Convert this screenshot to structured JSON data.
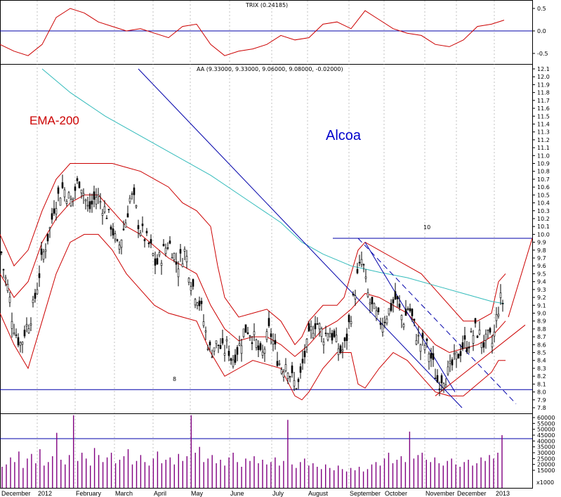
{
  "chart_data": {
    "type": "candlestick",
    "title": "Alcoa",
    "colors": {
      "price": "#000000",
      "bands": "#cc0000",
      "ema": "#33bbbb",
      "lines": "#0000aa",
      "trix": "#cc0000",
      "volume": "#800080"
    },
    "labels": {
      "ema": "EMA-200",
      "ohlc_header": "AA (9.33000, 9.33000, 9.06000, 9.08000, -0.02000)",
      "trix_header": "TRIX (0.24185)",
      "resistance_label": "10",
      "support_label": "8",
      "volume_unit": "x1000"
    },
    "x_ticks": [
      "December",
      "2012",
      "February",
      "March",
      "April",
      "May",
      "June",
      "July",
      "August",
      "September",
      "October",
      "November",
      "December",
      "2013"
    ],
    "price_axis": {
      "min": 7.8,
      "max": 12.1,
      "step": 0.1,
      "ticks": [
        "12.1",
        "12.0",
        "11.9",
        "11.8",
        "11.7",
        "11.6",
        "11.5",
        "11.4",
        "11.3",
        "11.2",
        "11.1",
        "11.0",
        "10.9",
        "10.8",
        "10.7",
        "10.6",
        "10.5",
        "10.4",
        "10.3",
        "10.2",
        "10.1",
        "10.0",
        "9.9",
        "9.8",
        "9.7",
        "9.6",
        "9.5",
        "9.4",
        "9.3",
        "9.2",
        "9.1",
        "9.0",
        "8.9",
        "8.8",
        "8.7",
        "8.6",
        "8.5",
        "8.4",
        "8.3",
        "8.2",
        "8.1",
        "8.0",
        "7.9",
        "7.8"
      ]
    },
    "trix_axis": {
      "min": -0.6,
      "max": 0.6,
      "ticks": [
        "0.5",
        "0.0",
        "-0.5"
      ]
    },
    "volume_axis": {
      "min": 0,
      "max": 65000,
      "ticks": [
        "60000",
        "55000",
        "50000",
        "45000",
        "40000",
        "35000",
        "30000",
        "25000",
        "20000",
        "15000"
      ]
    },
    "horizontal_levels": {
      "resistance": 9.95,
      "support": 8.03,
      "volume_line": 42000,
      "trix_zero": 0.0
    },
    "close_path": [
      [
        0,
        9.9
      ],
      [
        6,
        9.5
      ],
      [
        12,
        9.3
      ],
      [
        18,
        8.9
      ],
      [
        24,
        8.7
      ],
      [
        30,
        8.6
      ],
      [
        36,
        8.8
      ],
      [
        42,
        8.9
      ],
      [
        48,
        9.1
      ],
      [
        54,
        9.4
      ],
      [
        60,
        9.7
      ],
      [
        66,
        9.9
      ],
      [
        72,
        10.1
      ],
      [
        78,
        10.4
      ],
      [
        84,
        10.5
      ],
      [
        90,
        10.6
      ],
      [
        96,
        10.5
      ],
      [
        102,
        10.4
      ],
      [
        108,
        10.6
      ],
      [
        114,
        10.7
      ],
      [
        120,
        10.5
      ],
      [
        126,
        10.3
      ],
      [
        132,
        10.4
      ],
      [
        138,
        10.5
      ],
      [
        144,
        10.4
      ],
      [
        150,
        10.3
      ],
      [
        156,
        10.2
      ],
      [
        162,
        10.0
      ],
      [
        168,
        9.8
      ],
      [
        174,
        10.0
      ],
      [
        180,
        10.2
      ],
      [
        186,
        10.5
      ],
      [
        192,
        10.4
      ],
      [
        198,
        10.1
      ],
      [
        204,
        10.0
      ],
      [
        210,
        9.9
      ],
      [
        216,
        9.8
      ],
      [
        222,
        9.6
      ],
      [
        228,
        9.7
      ],
      [
        234,
        9.8
      ],
      [
        240,
        9.9
      ],
      [
        246,
        9.8
      ],
      [
        252,
        9.6
      ],
      [
        258,
        9.7
      ],
      [
        264,
        9.8
      ],
      [
        270,
        9.5
      ],
      [
        276,
        9.3
      ],
      [
        282,
        9.2
      ],
      [
        288,
        9.0
      ],
      [
        294,
        8.7
      ],
      [
        300,
        8.5
      ],
      [
        306,
        8.6
      ],
      [
        312,
        8.6
      ],
      [
        318,
        8.5
      ],
      [
        324,
        8.6
      ],
      [
        330,
        8.4
      ],
      [
        336,
        8.5
      ],
      [
        342,
        8.6
      ],
      [
        348,
        8.8
      ],
      [
        354,
        8.8
      ],
      [
        360,
        8.7
      ],
      [
        366,
        8.6
      ],
      [
        372,
        8.4
      ],
      [
        378,
        8.6
      ],
      [
        384,
        8.8
      ],
      [
        390,
        8.6
      ],
      [
        396,
        8.4
      ],
      [
        402,
        8.3
      ],
      [
        408,
        8.4
      ],
      [
        414,
        8.2
      ],
      [
        420,
        8.1
      ],
      [
        426,
        8.1
      ],
      [
        432,
        8.4
      ],
      [
        438,
        8.6
      ],
      [
        444,
        8.8
      ],
      [
        450,
        8.9
      ],
      [
        456,
        8.8
      ],
      [
        462,
        8.7
      ],
      [
        468,
        8.8
      ],
      [
        474,
        8.7
      ],
      [
        480,
        8.6
      ],
      [
        486,
        8.5
      ],
      [
        492,
        8.6
      ],
      [
        498,
        8.9
      ],
      [
        504,
        9.2
      ],
      [
        510,
        9.5
      ],
      [
        516,
        9.7
      ],
      [
        522,
        9.3
      ],
      [
        528,
        9.1
      ],
      [
        534,
        9.0
      ],
      [
        540,
        8.9
      ],
      [
        546,
        8.9
      ],
      [
        552,
        9.0
      ],
      [
        558,
        9.1
      ],
      [
        564,
        9.2
      ],
      [
        570,
        9.0
      ],
      [
        576,
        8.9
      ],
      [
        582,
        9.1
      ],
      [
        588,
        8.9
      ],
      [
        594,
        8.7
      ],
      [
        600,
        8.6
      ],
      [
        606,
        8.6
      ],
      [
        612,
        8.5
      ],
      [
        618,
        8.3
      ],
      [
        624,
        8.1
      ],
      [
        630,
        8.2
      ],
      [
        636,
        8.2
      ],
      [
        642,
        8.3
      ],
      [
        648,
        8.4
      ],
      [
        654,
        8.5
      ],
      [
        660,
        8.6
      ],
      [
        666,
        8.6
      ],
      [
        672,
        8.7
      ],
      [
        678,
        8.8
      ],
      [
        684,
        8.7
      ],
      [
        690,
        8.6
      ],
      [
        696,
        8.7
      ],
      [
        702,
        8.6
      ],
      [
        708,
        9.0
      ],
      [
        714,
        9.2
      ],
      [
        718,
        9.08
      ]
    ],
    "upper_band": [
      [
        0,
        10.0
      ],
      [
        20,
        9.6
      ],
      [
        40,
        9.8
      ],
      [
        60,
        10.3
      ],
      [
        80,
        10.7
      ],
      [
        100,
        10.9
      ],
      [
        120,
        10.9
      ],
      [
        140,
        10.9
      ],
      [
        160,
        10.9
      ],
      [
        180,
        10.85
      ],
      [
        200,
        10.8
      ],
      [
        220,
        10.7
      ],
      [
        240,
        10.6
      ],
      [
        260,
        10.4
      ],
      [
        280,
        10.3
      ],
      [
        300,
        10.1
      ],
      [
        310,
        9.6
      ],
      [
        320,
        9.2
      ],
      [
        340,
        8.95
      ],
      [
        360,
        9.0
      ],
      [
        380,
        9.05
      ],
      [
        400,
        8.9
      ],
      [
        420,
        8.6
      ],
      [
        430,
        8.7
      ],
      [
        440,
        8.9
      ],
      [
        460,
        9.1
      ],
      [
        480,
        9.1
      ],
      [
        490,
        9.2
      ],
      [
        500,
        9.5
      ],
      [
        510,
        9.8
      ],
      [
        520,
        9.9
      ],
      [
        540,
        9.8
      ],
      [
        560,
        9.7
      ],
      [
        580,
        9.6
      ],
      [
        600,
        9.5
      ],
      [
        620,
        9.3
      ],
      [
        640,
        9.1
      ],
      [
        660,
        8.9
      ],
      [
        680,
        8.9
      ],
      [
        700,
        9.0
      ],
      [
        710,
        9.4
      ],
      [
        720,
        9.5
      ]
    ],
    "middle_band": [
      [
        0,
        9.5
      ],
      [
        20,
        9.2
      ],
      [
        40,
        9.4
      ],
      [
        60,
        9.9
      ],
      [
        80,
        10.2
      ],
      [
        100,
        10.4
      ],
      [
        120,
        10.5
      ],
      [
        140,
        10.5
      ],
      [
        160,
        10.3
      ],
      [
        180,
        10.1
      ],
      [
        200,
        10.0
      ],
      [
        220,
        9.85
      ],
      [
        240,
        9.7
      ],
      [
        260,
        9.6
      ],
      [
        280,
        9.5
      ],
      [
        300,
        9.1
      ],
      [
        320,
        8.8
      ],
      [
        340,
        8.65
      ],
      [
        360,
        8.7
      ],
      [
        380,
        8.7
      ],
      [
        400,
        8.6
      ],
      [
        420,
        8.45
      ],
      [
        440,
        8.6
      ],
      [
        460,
        8.8
      ],
      [
        480,
        8.9
      ],
      [
        500,
        9.05
      ],
      [
        520,
        9.25
      ],
      [
        540,
        9.2
      ],
      [
        560,
        9.1
      ],
      [
        580,
        9.0
      ],
      [
        600,
        8.8
      ],
      [
        620,
        8.6
      ],
      [
        640,
        8.5
      ],
      [
        660,
        8.55
      ],
      [
        680,
        8.6
      ],
      [
        700,
        8.7
      ],
      [
        710,
        8.8
      ],
      [
        720,
        8.9
      ]
    ],
    "lower_band": [
      [
        0,
        9.0
      ],
      [
        20,
        8.6
      ],
      [
        40,
        8.3
      ],
      [
        60,
        8.9
      ],
      [
        80,
        9.5
      ],
      [
        100,
        9.9
      ],
      [
        120,
        10.0
      ],
      [
        140,
        10.0
      ],
      [
        160,
        9.8
      ],
      [
        180,
        9.5
      ],
      [
        200,
        9.3
      ],
      [
        220,
        9.1
      ],
      [
        240,
        9.0
      ],
      [
        260,
        8.95
      ],
      [
        280,
        8.9
      ],
      [
        300,
        8.5
      ],
      [
        320,
        8.2
      ],
      [
        340,
        8.3
      ],
      [
        360,
        8.4
      ],
      [
        380,
        8.35
      ],
      [
        400,
        8.3
      ],
      [
        420,
        7.95
      ],
      [
        430,
        7.9
      ],
      [
        440,
        8.0
      ],
      [
        460,
        8.3
      ],
      [
        480,
        8.5
      ],
      [
        500,
        8.5
      ],
      [
        510,
        8.1
      ],
      [
        520,
        8.05
      ],
      [
        540,
        8.3
      ],
      [
        560,
        8.5
      ],
      [
        580,
        8.4
      ],
      [
        600,
        8.2
      ],
      [
        620,
        8.0
      ],
      [
        640,
        7.95
      ],
      [
        660,
        7.95
      ],
      [
        680,
        8.1
      ],
      [
        700,
        8.25
      ],
      [
        710,
        8.4
      ],
      [
        720,
        8.4
      ]
    ],
    "ema_200": [
      [
        60,
        12.1
      ],
      [
        100,
        11.8
      ],
      [
        150,
        11.5
      ],
      [
        200,
        11.25
      ],
      [
        250,
        11.0
      ],
      [
        300,
        10.75
      ],
      [
        350,
        10.45
      ],
      [
        400,
        10.15
      ],
      [
        430,
        9.9
      ],
      [
        460,
        9.75
      ],
      [
        500,
        9.6
      ],
      [
        540,
        9.52
      ],
      [
        580,
        9.45
      ],
      [
        620,
        9.35
      ],
      [
        660,
        9.25
      ],
      [
        700,
        9.15
      ],
      [
        718,
        9.12
      ]
    ],
    "trendlines": [
      {
        "name": "long-downtrend",
        "points": [
          [
            197,
            12.1
          ],
          [
            658,
            7.8
          ]
        ]
      },
      {
        "name": "channel-upper",
        "points": [
          [
            510,
            9.95
          ],
          [
            735,
            7.85
          ]
        ]
      },
      {
        "name": "channel-lower",
        "points": [
          [
            520,
            9.9
          ],
          [
            648,
            8.0
          ]
        ]
      },
      {
        "name": "uptrend-support",
        "points": [
          [
            620,
            7.95
          ],
          [
            748,
            8.85
          ]
        ]
      },
      {
        "name": "projection",
        "points": [
          [
            724,
            8.95
          ],
          [
            758,
            9.95
          ]
        ]
      }
    ],
    "trix": [
      [
        0,
        -0.3
      ],
      [
        20,
        -0.45
      ],
      [
        40,
        -0.55
      ],
      [
        60,
        -0.3
      ],
      [
        80,
        0.3
      ],
      [
        100,
        0.5
      ],
      [
        120,
        0.4
      ],
      [
        140,
        0.2
      ],
      [
        160,
        0.1
      ],
      [
        180,
        0.0
      ],
      [
        200,
        0.05
      ],
      [
        220,
        -0.05
      ],
      [
        240,
        -0.15
      ],
      [
        260,
        0.1
      ],
      [
        280,
        0.15
      ],
      [
        300,
        -0.3
      ],
      [
        320,
        -0.55
      ],
      [
        340,
        -0.45
      ],
      [
        360,
        -0.4
      ],
      [
        380,
        -0.3
      ],
      [
        400,
        -0.1
      ],
      [
        420,
        -0.2
      ],
      [
        440,
        -0.15
      ],
      [
        460,
        0.15
      ],
      [
        480,
        0.2
      ],
      [
        500,
        0.05
      ],
      [
        520,
        0.45
      ],
      [
        540,
        0.25
      ],
      [
        560,
        0.05
      ],
      [
        580,
        -0.05
      ],
      [
        600,
        -0.1
      ],
      [
        620,
        -0.3
      ],
      [
        640,
        -0.35
      ],
      [
        660,
        -0.2
      ],
      [
        680,
        0.1
      ],
      [
        700,
        0.15
      ],
      [
        718,
        0.24
      ]
    ],
    "volume": [
      18000,
      20000,
      26000,
      22000,
      31000,
      17000,
      25000,
      29000,
      21000,
      33000,
      19000,
      22000,
      27000,
      47000,
      24000,
      20000,
      28000,
      62000,
      23000,
      30000,
      25000,
      19000,
      34000,
      28000,
      22000,
      26000,
      30000,
      21000,
      24000,
      27000,
      33000,
      20000,
      23000,
      28000,
      22000,
      19000,
      25000,
      31000,
      21000,
      24000,
      26000,
      20000,
      29000,
      23000,
      27000,
      62000,
      30000,
      35000,
      22000,
      25000,
      28000,
      21000,
      24000,
      19000,
      26000,
      30000,
      22000,
      18000,
      25000,
      23000,
      27000,
      21000,
      24000,
      20000,
      22000,
      26000,
      19000,
      23000,
      58000,
      20000,
      17000,
      22000,
      25000,
      19000,
      21000,
      18000,
      16000,
      20000,
      17000,
      15000,
      19000,
      16000,
      14000,
      17000,
      15000,
      18000,
      14000,
      16000,
      20000,
      22000,
      19000,
      25000,
      30000,
      21000,
      24000,
      27000,
      22000,
      48000,
      25000,
      28000,
      30000,
      24000,
      22000,
      26000,
      21000,
      19000,
      23000,
      25000,
      20000,
      18000,
      22000,
      24000,
      19000,
      21000,
      26000,
      23000,
      28000,
      25000,
      30000,
      45000
    ]
  }
}
